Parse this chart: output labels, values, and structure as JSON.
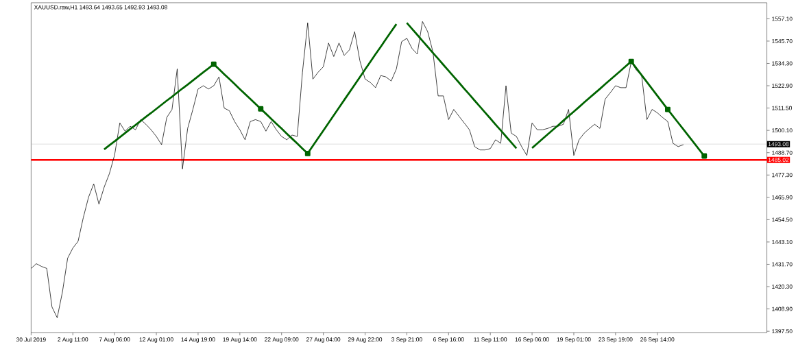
{
  "chart_data": {
    "type": "line",
    "title": "XAUUSD.raw,H1  1493.64 1493.65 1492.93 1493.08",
    "categories": [
      "30 Jul 2019",
      null,
      null,
      null,
      null,
      null,
      null,
      null,
      "2 Aug 11:00",
      null,
      null,
      null,
      null,
      null,
      null,
      null,
      "7 Aug 06:00",
      null,
      null,
      null,
      null,
      null,
      null,
      null,
      "12 Aug 01:00",
      null,
      null,
      null,
      null,
      null,
      null,
      null,
      "14 Aug 19:00",
      null,
      null,
      null,
      null,
      null,
      null,
      null,
      "19 Aug 14:00",
      null,
      null,
      null,
      null,
      null,
      null,
      null,
      "22 Aug 09:00",
      null,
      null,
      null,
      null,
      null,
      null,
      null,
      "27 Aug 04:00",
      null,
      null,
      null,
      null,
      null,
      null,
      null,
      "29 Aug 22:00",
      null,
      null,
      null,
      null,
      null,
      null,
      null,
      "3 Sep 21:00",
      null,
      null,
      null,
      null,
      null,
      null,
      null,
      "6 Sep 16:00",
      null,
      null,
      null,
      null,
      null,
      null,
      null,
      "11 Sep 11:00",
      null,
      null,
      null,
      null,
      null,
      null,
      null,
      "16 Sep 06:00",
      null,
      null,
      null,
      null,
      null,
      null,
      null,
      "19 Sep 01:00",
      null,
      null,
      null,
      null,
      null,
      null,
      null,
      "23 Sep 19:00",
      null,
      null,
      null,
      null,
      null,
      null,
      null,
      "26 Sep 14:00",
      null,
      null,
      null,
      null,
      null,
      null,
      null,
      null,
      null,
      null,
      null,
      null,
      null,
      null,
      null,
      null,
      null,
      null,
      null,
      null
    ],
    "ylim": [
      1396.8,
      1565.3
    ],
    "yticks": [
      {
        "value": 1397.5,
        "label": "1397.50"
      },
      {
        "value": 1408.9,
        "label": "1408.90"
      },
      {
        "value": 1420.3,
        "label": "1420.30"
      },
      {
        "value": 1431.7,
        "label": "1431.70"
      },
      {
        "value": 1443.1,
        "label": "1443.10"
      },
      {
        "value": 1454.5,
        "label": "1454.50"
      },
      {
        "value": 1465.9,
        "label": "1465.90"
      },
      {
        "value": 1477.3,
        "label": "1477.30"
      },
      {
        "value": 1488.7,
        "label": "1488.70"
      },
      {
        "value": 1500.1,
        "label": "1500.10"
      },
      {
        "value": 1511.5,
        "label": "1511.50"
      },
      {
        "value": 1522.9,
        "label": "1522.90"
      },
      {
        "value": 1534.3,
        "label": "1534.30"
      },
      {
        "value": 1545.7,
        "label": "1545.70"
      },
      {
        "value": 1557.1,
        "label": "1557.10"
      }
    ],
    "ref_lines": [
      {
        "axis": "y",
        "value": 1493.08,
        "label": "1493.08",
        "color": "#c0c0c0"
      },
      {
        "axis": "y",
        "value": 1485.02,
        "label": "1485.02",
        "color": "#ff0000"
      }
    ],
    "series": [
      {
        "color": "#000000",
        "marker": "none",
        "values": [
          1429.6,
          1432.0,
          1430.6,
          1429.6,
          1409.9,
          1404.4,
          1417.5,
          1434.8,
          1440.0,
          1443.4,
          1455.5,
          1465.9,
          1472.8,
          1462.4,
          1471.1,
          1478.0,
          1487.5,
          1503.9,
          1499.7,
          1502.2,
          1500.4,
          1505.6,
          1503.2,
          1500.4,
          1497.0,
          1492.8,
          1506.7,
          1510.8,
          1531.5,
          1480.4,
          1501.1,
          1510.8,
          1521.2,
          1522.9,
          1521.2,
          1522.9,
          1527.4,
          1511.5,
          1510.1,
          1504.6,
          1500.4,
          1495.3,
          1504.6,
          1505.6,
          1504.6,
          1499.7,
          1504.6,
          1500.4,
          1497.0,
          1495.3,
          1497.7,
          1497.0,
          1529.8,
          1555.0,
          1526.3,
          1529.8,
          1532.6,
          1544.7,
          1537.8,
          1544.7,
          1538.4,
          1541.2,
          1550.5,
          1535.7,
          1526.3,
          1524.6,
          1521.9,
          1528.1,
          1527.4,
          1525.3,
          1531.5,
          1545.4,
          1547.1,
          1541.9,
          1539.1,
          1555.7,
          1550.5,
          1540.2,
          1517.7,
          1517.7,
          1505.6,
          1510.8,
          1507.3,
          1503.9,
          1500.4,
          1491.8,
          1490.1,
          1490.1,
          1490.8,
          1495.3,
          1493.5,
          1522.9,
          1498.7,
          1497.0,
          1491.8,
          1487.3,
          1503.9,
          1500.4,
          1500.4,
          1501.1,
          1502.2,
          1502.2,
          1503.2,
          1510.8,
          1487.3,
          1495.3,
          1498.7,
          1501.1,
          1503.2,
          1501.1,
          1516.0,
          1519.4,
          1522.9,
          1521.9,
          1521.9,
          1535.0,
          1530.8,
          1528.1,
          1505.6,
          1510.8,
          1509.1,
          1506.7,
          1504.6,
          1493.5,
          1491.8,
          1492.8,
          null,
          null,
          null,
          null,
          null,
          null,
          null,
          null,
          null,
          null,
          null,
          null,
          null,
          null,
          null
        ]
      },
      {
        "color": "#006400",
        "marker": "none",
        "values": [
          null,
          null,
          null,
          null,
          null,
          null,
          null,
          null,
          null,
          null,
          null,
          null,
          null,
          null,
          1490.4,
          1492.5,
          1494.5,
          1496.6,
          1498.7,
          1500.8,
          1502.8,
          1504.9,
          1507.0,
          1509.0,
          1511.1,
          1513.2,
          1515.3,
          1517.3,
          1519.4,
          1521.5,
          1523.5,
          1525.6,
          1527.7,
          1529.8,
          1531.8,
          1533.9,
          1531.4,
          1528.8,
          1526.3,
          1523.8,
          1521.2,
          1518.7,
          1516.2,
          1513.6,
          1511.1,
          1508.6,
          1506.0,
          1503.5,
          1501.0,
          1498.4,
          1495.9,
          1493.4,
          1490.8,
          1488.3,
          1492.2,
          1496.1,
          1500.0,
          1503.9,
          1507.8,
          1511.7,
          1515.6,
          1519.5,
          1523.4,
          1527.3,
          1531.2,
          1535.1,
          1539.0,
          1542.8,
          1546.7,
          1550.6,
          1554.4,
          null,
          1555.0,
          1551.9,
          1548.9,
          1545.8,
          1542.8,
          1539.7,
          1536.7,
          1533.6,
          1530.6,
          1527.5,
          1524.5,
          1521.4,
          1518.4,
          1515.3,
          1512.3,
          1509.2,
          1506.2,
          1503.1,
          1500.1,
          1497.0,
          1494.0,
          1490.9,
          null,
          null,
          1491.1,
          1493.4,
          1495.8,
          1498.1,
          1500.4,
          1502.7,
          1505.1,
          1507.4,
          1509.7,
          1512.0,
          1514.4,
          1516.7,
          1519.0,
          1521.3,
          1523.7,
          1526.0,
          1528.3,
          1530.6,
          1533.0,
          1535.3,
          1531.8,
          1528.3,
          1524.8,
          1521.3,
          1517.8,
          1514.3,
          1510.8,
          1507.4,
          1504.0,
          1500.6,
          1497.2,
          1493.8,
          1490.4,
          1487.0,
          null,
          null,
          null,
          null,
          null,
          null,
          null,
          null,
          null,
          null,
          null
        ]
      },
      {
        "type": "scatter",
        "color": "#006400",
        "marker": "square",
        "values": [
          null,
          null,
          null,
          null,
          null,
          null,
          null,
          null,
          null,
          null,
          null,
          null,
          null,
          null,
          null,
          null,
          null,
          null,
          null,
          null,
          null,
          null,
          null,
          null,
          null,
          null,
          null,
          null,
          null,
          null,
          null,
          null,
          null,
          null,
          null,
          1533.9,
          null,
          null,
          null,
          null,
          null,
          null,
          null,
          null,
          1511.1,
          null,
          null,
          null,
          null,
          null,
          null,
          null,
          null,
          1488.3,
          null,
          null,
          null,
          null,
          null,
          null,
          null,
          null,
          null,
          null,
          null,
          null,
          null,
          null,
          null,
          null,
          null,
          null,
          null,
          null,
          null,
          null,
          null,
          null,
          null,
          null,
          null,
          null,
          null,
          null,
          null,
          null,
          null,
          null,
          null,
          null,
          null,
          null,
          null,
          null,
          null,
          null,
          null,
          null,
          null,
          null,
          null,
          null,
          null,
          null,
          null,
          null,
          null,
          null,
          null,
          null,
          null,
          null,
          null,
          null,
          null,
          1535.3,
          null,
          null,
          null,
          null,
          null,
          null,
          1510.8,
          null,
          null,
          null,
          null,
          null,
          null,
          1487.0,
          null,
          null,
          null,
          null,
          null,
          null,
          null,
          null,
          null,
          null,
          null
        ]
      }
    ]
  }
}
